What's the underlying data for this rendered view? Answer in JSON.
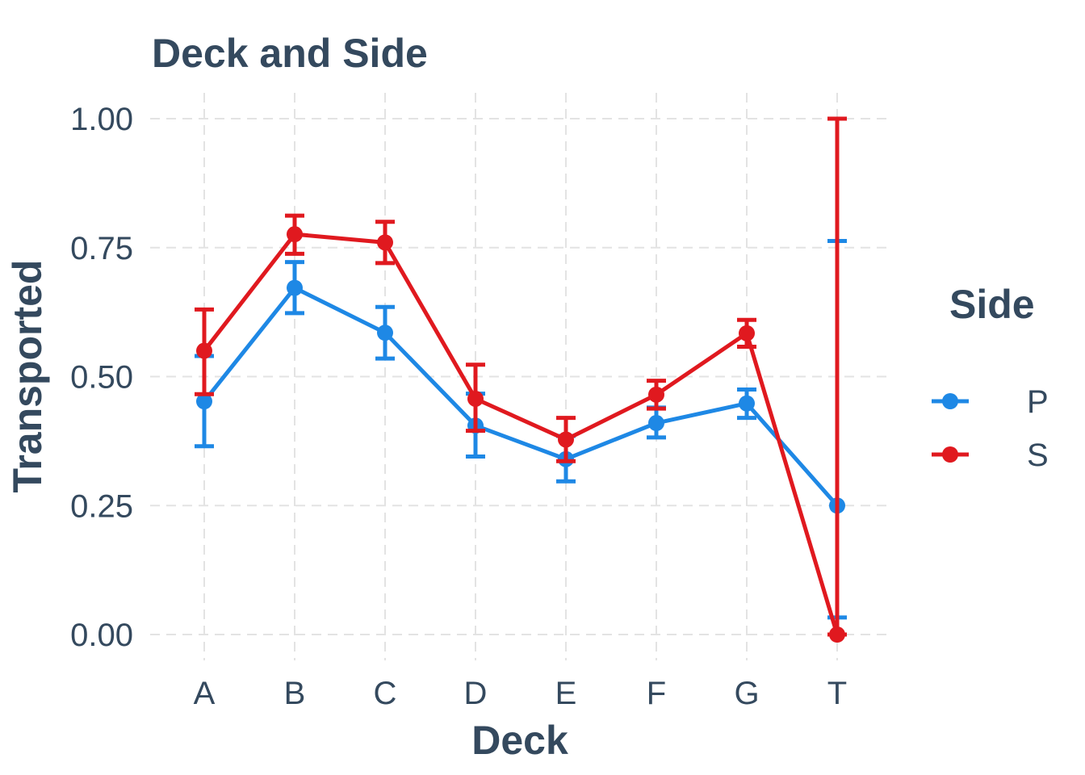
{
  "chart_data": {
    "type": "line",
    "title": "Deck and Side",
    "xlabel": "Deck",
    "ylabel": "Transported",
    "categories": [
      "A",
      "B",
      "C",
      "D",
      "E",
      "F",
      "G",
      "T"
    ],
    "ylim": [
      -0.06,
      1.05
    ],
    "yticks": [
      0.0,
      0.25,
      0.5,
      0.75,
      1.0
    ],
    "ytick_labels": [
      "0.00",
      "0.25",
      "0.50",
      "0.75",
      "1.00"
    ],
    "grid": true,
    "legend": {
      "title": "Side",
      "position": "right"
    },
    "series": [
      {
        "name": "P",
        "color": "#1e88e5",
        "values": [
          0.452,
          0.672,
          0.585,
          0.405,
          0.34,
          0.41,
          0.448,
          0.25
        ],
        "lower": [
          0.365,
          0.623,
          0.535,
          0.345,
          0.297,
          0.382,
          0.42,
          0.033
        ],
        "upper": [
          0.54,
          0.722,
          0.635,
          0.467,
          0.385,
          0.44,
          0.475,
          0.763
        ]
      },
      {
        "name": "S",
        "color": "#e0191f",
        "values": [
          0.55,
          0.776,
          0.76,
          0.457,
          0.378,
          0.465,
          0.584,
          0.0
        ],
        "lower": [
          0.466,
          0.738,
          0.72,
          0.395,
          0.336,
          0.438,
          0.558,
          0.0
        ],
        "upper": [
          0.63,
          0.812,
          0.8,
          0.523,
          0.42,
          0.492,
          0.61,
          1.0
        ]
      }
    ]
  }
}
